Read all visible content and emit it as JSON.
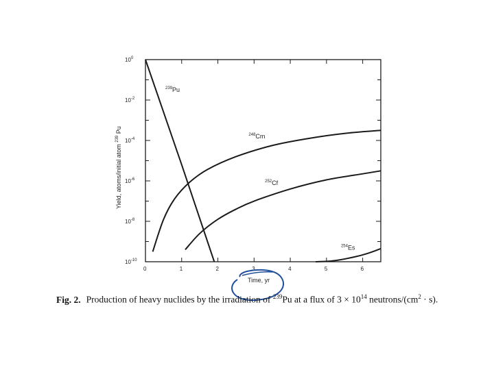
{
  "chart_data": {
    "type": "line",
    "xlabel": "Time, yr",
    "ylabel_prefix": "Yield, atoms/initial atom",
    "ylabel_sup": "239",
    "ylabel_suffix": "Pu",
    "xlim": [
      0,
      6.5
    ],
    "ylim_log10": [
      -10,
      0
    ],
    "y_scale": "log",
    "x_ticks": [
      0,
      1,
      2,
      3,
      4,
      5,
      6
    ],
    "y_tick_labels": [
      {
        "base": "10",
        "exp": "0",
        "value_log10": 0
      },
      {
        "base": "10",
        "exp": "-2",
        "value_log10": -2
      },
      {
        "base": "10",
        "exp": "-4",
        "value_log10": -4
      },
      {
        "base": "10",
        "exp": "-6",
        "value_log10": -6
      },
      {
        "base": "10",
        "exp": "-8",
        "value_log10": -8
      },
      {
        "base": "10",
        "exp": "-10",
        "value_log10": -10
      }
    ],
    "series": [
      {
        "name_sup": "239",
        "name_base": "Pu",
        "points": [
          [
            0.0,
            0.0
          ],
          [
            1.0,
            -5.2
          ],
          [
            1.9,
            -10.0
          ]
        ]
      },
      {
        "name_sup": "248",
        "name_base": "Cm",
        "points": [
          [
            0.2,
            -9.5
          ],
          [
            0.5,
            -7.9
          ],
          [
            0.8,
            -6.9
          ],
          [
            1.2,
            -6.1
          ],
          [
            1.7,
            -5.45
          ],
          [
            2.5,
            -4.8
          ],
          [
            3.5,
            -4.25
          ],
          [
            4.5,
            -3.9
          ],
          [
            5.5,
            -3.65
          ],
          [
            6.5,
            -3.5
          ]
        ]
      },
      {
        "name_sup": "252",
        "name_base": "Cf",
        "points": [
          [
            1.1,
            -9.4
          ],
          [
            1.5,
            -8.6
          ],
          [
            2.0,
            -7.9
          ],
          [
            2.5,
            -7.4
          ],
          [
            3.0,
            -7.0
          ],
          [
            4.0,
            -6.4
          ],
          [
            5.0,
            -5.95
          ],
          [
            6.0,
            -5.65
          ],
          [
            6.5,
            -5.5
          ]
        ]
      },
      {
        "name_sup": "254",
        "name_base": "Es",
        "points": [
          [
            4.7,
            -10.0
          ],
          [
            5.2,
            -9.95
          ],
          [
            5.8,
            -9.75
          ],
          [
            6.2,
            -9.55
          ],
          [
            6.5,
            -9.35
          ]
        ]
      }
    ],
    "grid": false,
    "legend": "none"
  },
  "caption": {
    "fig_label": "Fig. 2.",
    "text_before": "Production of heavy nuclides by the irradiation of ",
    "nuclide_sup": "239",
    "nuclide_base": "Pu",
    "text_mid": " at a flux of 3 × 10",
    "flux_exp": "14",
    "text_after": " neutrons/(cm",
    "area_exp": "2",
    "text_end": " · s)."
  },
  "colors": {
    "ink": "#1a1a1a",
    "annotation": "#1f4e9c"
  }
}
